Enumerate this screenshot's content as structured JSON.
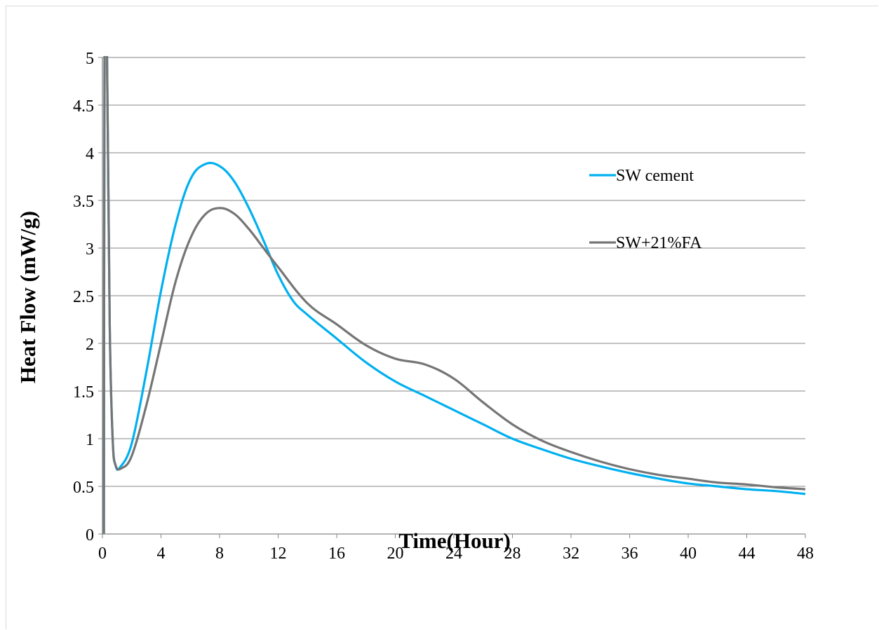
{
  "chart_data": {
    "type": "line",
    "title": "",
    "xlabel": "Time(Hour)",
    "ylabel": "Heat Flow (mW/g)",
    "xlim": [
      0,
      48
    ],
    "ylim": [
      0,
      5
    ],
    "xticks": [
      0,
      4,
      8,
      12,
      16,
      20,
      24,
      28,
      32,
      36,
      40,
      44,
      48
    ],
    "yticks": [
      0,
      0.5,
      1,
      1.5,
      2,
      2.5,
      3,
      3.5,
      4,
      4.5,
      5
    ],
    "ytick_labels": [
      "0",
      "0.5",
      "1",
      "1.5",
      "2",
      "2.5",
      "3",
      "3.5",
      "4",
      "4.5",
      "5"
    ],
    "grid": "horizontal",
    "legend_position": "right",
    "series": [
      {
        "name": "SW cement",
        "color": "#00b0f0",
        "points": [
          [
            0.1,
            0
          ],
          [
            0.15,
            5.2
          ],
          [
            0.3,
            5.2
          ],
          [
            0.5,
            2.2
          ],
          [
            0.7,
            1.0
          ],
          [
            0.9,
            0.72
          ],
          [
            1.2,
            0.7
          ],
          [
            2,
            0.95
          ],
          [
            3,
            1.7
          ],
          [
            4,
            2.55
          ],
          [
            5,
            3.25
          ],
          [
            6,
            3.72
          ],
          [
            7,
            3.88
          ],
          [
            8,
            3.86
          ],
          [
            9,
            3.7
          ],
          [
            10,
            3.42
          ],
          [
            11,
            3.08
          ],
          [
            12,
            2.72
          ],
          [
            13,
            2.45
          ],
          [
            14,
            2.3
          ],
          [
            16,
            2.05
          ],
          [
            18,
            1.8
          ],
          [
            20,
            1.6
          ],
          [
            22,
            1.45
          ],
          [
            24,
            1.3
          ],
          [
            26,
            1.15
          ],
          [
            28,
            1.0
          ],
          [
            30,
            0.89
          ],
          [
            32,
            0.79
          ],
          [
            34,
            0.71
          ],
          [
            36,
            0.64
          ],
          [
            38,
            0.58
          ],
          [
            40,
            0.53
          ],
          [
            42,
            0.5
          ],
          [
            44,
            0.47
          ],
          [
            46,
            0.45
          ],
          [
            48,
            0.42
          ]
        ]
      },
      {
        "name": "SW+21%FA",
        "color": "#757575",
        "points": [
          [
            0.1,
            0
          ],
          [
            0.15,
            5.2
          ],
          [
            0.3,
            5.2
          ],
          [
            0.5,
            2.2
          ],
          [
            0.7,
            1.0
          ],
          [
            0.9,
            0.72
          ],
          [
            1.3,
            0.69
          ],
          [
            2,
            0.82
          ],
          [
            3,
            1.35
          ],
          [
            4,
            2.0
          ],
          [
            5,
            2.65
          ],
          [
            6,
            3.1
          ],
          [
            7,
            3.35
          ],
          [
            8,
            3.42
          ],
          [
            9,
            3.36
          ],
          [
            10,
            3.2
          ],
          [
            11,
            3.0
          ],
          [
            12,
            2.8
          ],
          [
            14,
            2.42
          ],
          [
            16,
            2.2
          ],
          [
            18,
            1.98
          ],
          [
            20,
            1.84
          ],
          [
            22,
            1.78
          ],
          [
            24,
            1.63
          ],
          [
            26,
            1.38
          ],
          [
            28,
            1.15
          ],
          [
            30,
            0.98
          ],
          [
            32,
            0.86
          ],
          [
            34,
            0.76
          ],
          [
            36,
            0.68
          ],
          [
            38,
            0.62
          ],
          [
            40,
            0.58
          ],
          [
            42,
            0.54
          ],
          [
            44,
            0.52
          ],
          [
            46,
            0.49
          ],
          [
            48,
            0.47
          ]
        ]
      }
    ]
  }
}
